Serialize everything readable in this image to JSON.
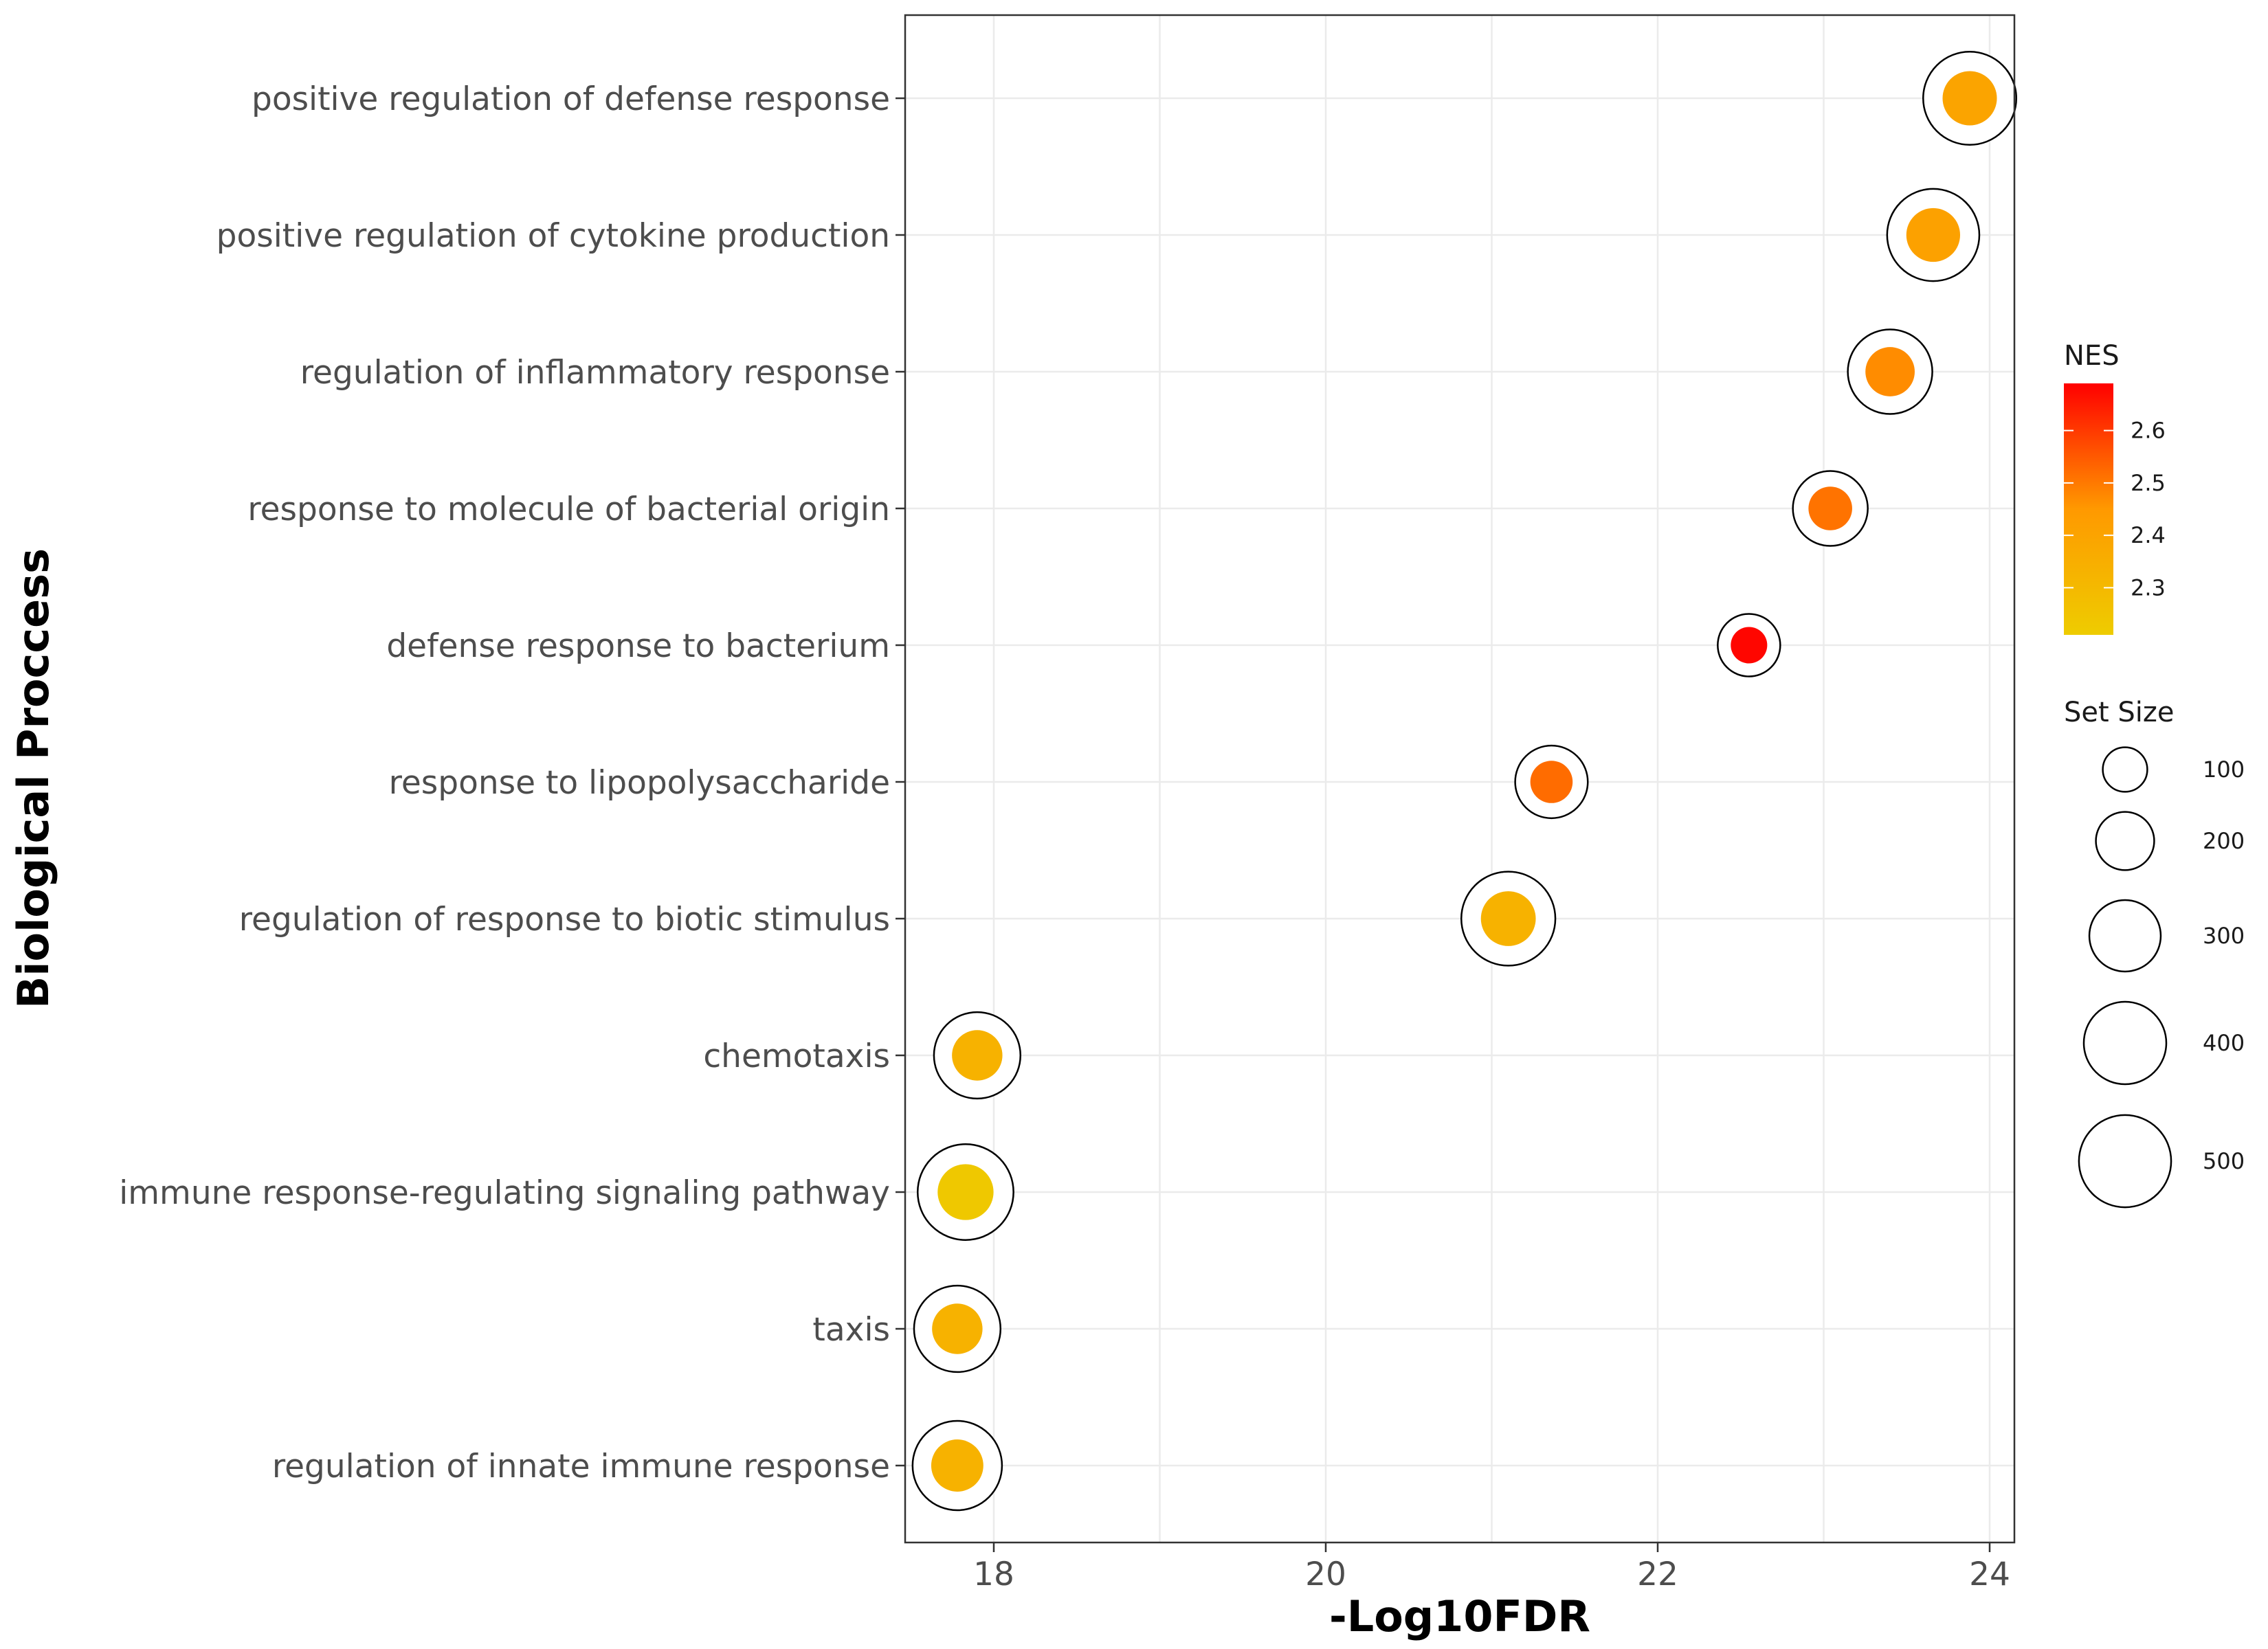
{
  "chart_data": {
    "type": "scatter",
    "xlabel": "-Log10FDR",
    "ylabel": "Biological Proccess",
    "xlim": [
      17.5,
      24.15
    ],
    "xticks": [
      18,
      20,
      22,
      24
    ],
    "grid": true,
    "legend_position": "right",
    "points": [
      {
        "term": "positive regulation of defense response",
        "x": 23.88,
        "nes": 2.4,
        "set_size": 510
      },
      {
        "term": "positive regulation of cytokine production",
        "x": 23.66,
        "nes": 2.41,
        "set_size": 500
      },
      {
        "term": "regulation of inflammatory response",
        "x": 23.4,
        "nes": 2.47,
        "set_size": 420
      },
      {
        "term": "response to molecule of bacterial origin",
        "x": 23.04,
        "nes": 2.51,
        "set_size": 330
      },
      {
        "term": "defense response to bacterium",
        "x": 22.55,
        "nes": 2.68,
        "set_size": 230
      },
      {
        "term": "response to lipopolysaccharide",
        "x": 21.36,
        "nes": 2.52,
        "set_size": 310
      },
      {
        "term": "regulation of response to biotic stimulus",
        "x": 21.1,
        "nes": 2.33,
        "set_size": 520
      },
      {
        "term": "chemotaxis",
        "x": 17.9,
        "nes": 2.33,
        "set_size": 440
      },
      {
        "term": "immune response-regulating signaling pathway",
        "x": 17.83,
        "nes": 2.23,
        "set_size": 540
      },
      {
        "term": "taxis",
        "x": 17.78,
        "nes": 2.33,
        "set_size": 440
      },
      {
        "term": "regulation of innate immune response",
        "x": 17.78,
        "nes": 2.33,
        "set_size": 470
      }
    ],
    "color_legend": {
      "title": "NES",
      "min": 2.21,
      "max": 2.69,
      "ticks": [
        2.3,
        2.4,
        2.5,
        2.6
      ],
      "low_color": "#EECC00",
      "mid_color": "#FF9900",
      "high_color": "#FF0000"
    },
    "size_legend": {
      "title": "Set Size",
      "values": [
        100,
        200,
        300,
        400,
        500
      ]
    }
  }
}
